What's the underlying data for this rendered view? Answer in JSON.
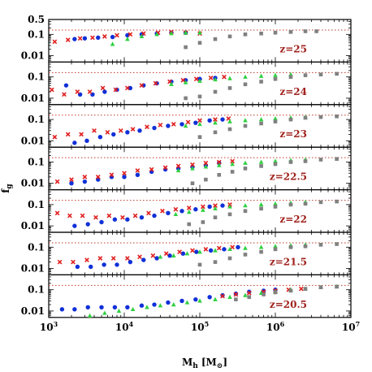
{
  "figure": {
    "ylabel_main": "f",
    "ylabel_sub": "g",
    "xlabel_main": "M",
    "xlabel_sub": "h",
    "xlabel_unit": "[M",
    "xlabel_unit_sub": "⊙",
    "xlabel_unit_end": "]"
  },
  "chart_data": {
    "type": "scatter",
    "x_scale": "log",
    "y_scale": "log",
    "xlim": [
      1000,
      10000000
    ],
    "ylim": [
      0.005,
      0.5
    ],
    "x_ticks": [
      {
        "base": "10",
        "exp": "3"
      },
      {
        "base": "10",
        "exp": "4"
      },
      {
        "base": "10",
        "exp": "5"
      },
      {
        "base": "10",
        "exp": "6"
      },
      {
        "base": "10",
        "exp": "7"
      }
    ],
    "y_tick_labels": [
      "0.5",
      "0.1",
      "0.01"
    ],
    "reference_line": {
      "y": 0.16,
      "style": "dotted",
      "color": "#c0392b"
    },
    "series_colors": {
      "blue": "#1030d8",
      "red": "#e02020",
      "green": "#30d040",
      "gray": "#808080"
    },
    "panels": [
      {
        "label": "z=25",
        "series": [
          {
            "marker": "circle",
            "color": "#1030d8",
            "x": [
              2200,
              3000,
              4500,
              7000,
              11000,
              17000,
              27000,
              42000,
              65000
            ],
            "y": [
              0.06,
              0.065,
              0.07,
              0.075,
              0.09,
              0.1,
              0.11,
              0.12,
              0.12
            ]
          },
          {
            "marker": "x",
            "color": "#e02020",
            "x": [
              1200,
              1800,
              2600,
              3800,
              5500,
              8000,
              12000,
              18000,
              28000,
              42000,
              65000,
              100000
            ],
            "y": [
              0.045,
              0.055,
              0.065,
              0.07,
              0.08,
              0.09,
              0.1,
              0.11,
              0.12,
              0.13,
              0.12,
              0.11
            ]
          },
          {
            "marker": "triangle",
            "color": "#30d040",
            "x": [
              7000,
              11000,
              17000,
              27000,
              42000,
              65000,
              100000
            ],
            "y": [
              0.035,
              0.06,
              0.08,
              0.1,
              0.11,
              0.12,
              0.12
            ]
          },
          {
            "marker": "square",
            "color": "#808080",
            "x": [
              65000,
              100000,
              160000,
              250000,
              400000,
              650000,
              1000000,
              1600000,
              2500000,
              3500000
            ],
            "y": [
              0.025,
              0.04,
              0.06,
              0.08,
              0.1,
              0.11,
              0.12,
              0.13,
              0.14,
              0.14
            ]
          }
        ]
      },
      {
        "label": "z=24",
        "series": [
          {
            "marker": "circle",
            "color": "#1030d8",
            "x": [
              1700,
              2600,
              3800,
              5500,
              8000,
              12000,
              18000,
              27000,
              42000,
              65000,
              100000,
              160000
            ],
            "y": [
              0.04,
              0.015,
              0.015,
              0.02,
              0.025,
              0.03,
              0.04,
              0.05,
              0.06,
              0.07,
              0.08,
              0.09
            ]
          },
          {
            "marker": "x",
            "color": "#e02020",
            "x": [
              1100,
              1600,
              2400,
              3500,
              5200,
              7700,
              11000,
              17000,
              26000,
              40000,
              60000,
              90000,
              140000,
              210000
            ],
            "y": [
              0.025,
              0.015,
              0.02,
              0.02,
              0.03,
              0.025,
              0.03,
              0.04,
              0.05,
              0.06,
              0.07,
              0.08,
              0.09,
              0.1
            ]
          },
          {
            "marker": "triangle",
            "color": "#30d040",
            "x": [
              42000,
              65000,
              100000,
              160000,
              250000,
              400000,
              650000,
              1000000,
              1600000
            ],
            "y": [
              0.045,
              0.055,
              0.065,
              0.075,
              0.085,
              0.1,
              0.11,
              0.12,
              0.13
            ]
          },
          {
            "marker": "square",
            "color": "#808080",
            "x": [
              65000,
              100000,
              160000,
              250000,
              400000,
              650000,
              1000000,
              1600000,
              2500000,
              4000000,
              6500000
            ],
            "y": [
              0.01,
              0.012,
              0.02,
              0.03,
              0.045,
              0.06,
              0.08,
              0.1,
              0.12,
              0.13,
              0.14
            ]
          }
        ]
      },
      {
        "label": "z=23",
        "series": [
          {
            "marker": "circle",
            "color": "#1030d8",
            "x": [
              2200,
              3200,
              4800,
              7200,
              11000,
              16000,
              25000,
              38000,
              58000,
              88000,
              135000,
              200000
            ],
            "y": [
              0.008,
              0.01,
              0.015,
              0.02,
              0.025,
              0.03,
              0.04,
              0.05,
              0.06,
              0.07,
              0.09,
              0.1
            ]
          },
          {
            "marker": "x",
            "color": "#e02020",
            "x": [
              1200,
              1800,
              2700,
              4000,
              6000,
              9000,
              13000,
              20000,
              30000,
              45000,
              70000,
              100000,
              160000,
              240000
            ],
            "y": [
              0.015,
              0.02,
              0.02,
              0.03,
              0.025,
              0.03,
              0.035,
              0.045,
              0.055,
              0.06,
              0.075,
              0.09,
              0.1,
              0.11
            ]
          },
          {
            "marker": "triangle",
            "color": "#30d040",
            "x": [
              65000,
              100000,
              160000,
              250000,
              400000,
              650000,
              1000000,
              1600000,
              2500000
            ],
            "y": [
              0.05,
              0.06,
              0.07,
              0.08,
              0.09,
              0.1,
              0.11,
              0.12,
              0.13
            ]
          },
          {
            "marker": "square",
            "color": "#808080",
            "x": [
              100000,
              160000,
              250000,
              400000,
              650000,
              1000000,
              1600000,
              2500000,
              4000000,
              6500000
            ],
            "y": [
              0.015,
              0.025,
              0.035,
              0.05,
              0.065,
              0.08,
              0.1,
              0.12,
              0.13,
              0.14
            ]
          }
        ]
      },
      {
        "label": "z=22.5",
        "series": [
          {
            "marker": "circle",
            "color": "#1030d8",
            "x": [
              2000,
              3000,
              4500,
              6800,
              10000,
              15000,
              23000,
              35000,
              52000,
              80000,
              120000,
              180000
            ],
            "y": [
              0.01,
              0.012,
              0.015,
              0.02,
              0.02,
              0.025,
              0.035,
              0.045,
              0.05,
              0.06,
              0.07,
              0.09
            ]
          },
          {
            "marker": "x",
            "color": "#e02020",
            "x": [
              1300,
              2000,
              3000,
              4500,
              6800,
              10000,
              15000,
              23000,
              35000,
              52000,
              80000,
              120000,
              180000,
              270000
            ],
            "y": [
              0.012,
              0.015,
              0.02,
              0.02,
              0.025,
              0.03,
              0.04,
              0.045,
              0.055,
              0.065,
              0.075,
              0.09,
              0.1,
              0.11
            ]
          },
          {
            "marker": "triangle",
            "color": "#30d040",
            "x": [
              52000,
              80000,
              120000,
              180000,
              270000,
              400000,
              650000,
              1000000,
              1600000,
              2500000
            ],
            "y": [
              0.04,
              0.05,
              0.06,
              0.07,
              0.08,
              0.09,
              0.1,
              0.11,
              0.12,
              0.13
            ]
          },
          {
            "marker": "square",
            "color": "#808080",
            "x": [
              80000,
              120000,
              180000,
              270000,
              400000,
              650000,
              1000000,
              1600000,
              2500000,
              4000000,
              6500000
            ],
            "y": [
              0.01,
              0.015,
              0.025,
              0.035,
              0.05,
              0.065,
              0.08,
              0.1,
              0.11,
              0.13,
              0.14
            ]
          }
        ]
      },
      {
        "label": "z=22",
        "series": [
          {
            "marker": "circle",
            "color": "#1030d8",
            "x": [
              2200,
              3300,
              5000,
              7500,
              11000,
              17000,
              25000,
              38000,
              58000,
              88000,
              135000,
              200000
            ],
            "y": [
              0.01,
              0.012,
              0.015,
              0.02,
              0.02,
              0.025,
              0.03,
              0.04,
              0.05,
              0.06,
              0.08,
              0.09
            ]
          },
          {
            "marker": "x",
            "color": "#e02020",
            "x": [
              1300,
              1900,
              2800,
              4200,
              6300,
              9500,
              14000,
              21000,
              32000,
              48000,
              72000,
              110000,
              160000,
              250000
            ],
            "y": [
              0.04,
              0.03,
              0.03,
              0.025,
              0.03,
              0.025,
              0.03,
              0.04,
              0.05,
              0.06,
              0.07,
              0.08,
              0.09,
              0.1
            ]
          },
          {
            "marker": "triangle",
            "color": "#30d040",
            "x": [
              48000,
              72000,
              110000,
              160000,
              250000,
              400000,
              650000,
              1000000,
              1600000,
              2500000
            ],
            "y": [
              0.035,
              0.045,
              0.055,
              0.065,
              0.08,
              0.09,
              0.1,
              0.11,
              0.12,
              0.13
            ]
          },
          {
            "marker": "square",
            "color": "#808080",
            "x": [
              72000,
              110000,
              160000,
              250000,
              400000,
              650000,
              1000000,
              1600000,
              2500000,
              4000000,
              6500000
            ],
            "y": [
              0.012,
              0.015,
              0.025,
              0.035,
              0.05,
              0.065,
              0.08,
              0.1,
              0.11,
              0.13,
              0.14
            ]
          }
        ]
      },
      {
        "label": "z=21.5",
        "series": [
          {
            "marker": "circle",
            "color": "#1030d8",
            "x": [
              2400,
              3600,
              5400,
              8000,
              12000,
              18000,
              27000,
              40000,
              60000,
              90000,
              140000,
              210000,
              320000
            ],
            "y": [
              0.012,
              0.012,
              0.015,
              0.015,
              0.02,
              0.025,
              0.03,
              0.04,
              0.05,
              0.06,
              0.07,
              0.08,
              0.1
            ]
          },
          {
            "marker": "x",
            "color": "#e02020",
            "x": [
              1400,
              2100,
              3200,
              4800,
              7200,
              11000,
              16000,
              24000,
              36000,
              54000,
              80000,
              120000,
              180000,
              270000
            ],
            "y": [
              0.02,
              0.02,
              0.025,
              0.03,
              0.03,
              0.03,
              0.035,
              0.04,
              0.05,
              0.06,
              0.07,
              0.08,
              0.09,
              0.1
            ]
          },
          {
            "marker": "triangle",
            "color": "#30d040",
            "x": [
              30000,
              45000,
              68000,
              100000,
              160000,
              250000,
              400000,
              650000,
              1000000,
              1600000,
              2500000
            ],
            "y": [
              0.035,
              0.04,
              0.05,
              0.06,
              0.07,
              0.08,
              0.09,
              0.1,
              0.11,
              0.12,
              0.13
            ]
          },
          {
            "marker": "square",
            "color": "#808080",
            "x": [
              100000,
              160000,
              250000,
              400000,
              650000,
              1000000,
              1600000,
              2500000,
              4000000,
              6500000
            ],
            "y": [
              0.015,
              0.02,
              0.03,
              0.045,
              0.06,
              0.08,
              0.1,
              0.11,
              0.13,
              0.14
            ]
          }
        ]
      },
      {
        "label": "z=20.5",
        "series": [
          {
            "marker": "circle",
            "color": "#1030d8",
            "x": [
              1500,
              2200,
              3300,
              5000,
              7500,
              11000,
              17000,
              25000,
              38000,
              58000,
              88000,
              135000,
              200000,
              300000,
              450000,
              700000,
              1000000
            ],
            "y": [
              0.012,
              0.012,
              0.015,
              0.015,
              0.015,
              0.015,
              0.018,
              0.02,
              0.025,
              0.03,
              0.035,
              0.045,
              0.055,
              0.065,
              0.08,
              0.09,
              0.1
            ]
          },
          {
            "marker": "x",
            "color": "#e02020",
            "x": [
              200000,
              300000,
              450000,
              700000,
              1000000,
              1500000,
              2200000
            ],
            "y": [
              0.05,
              0.06,
              0.07,
              0.08,
              0.09,
              0.1,
              0.11
            ]
          },
          {
            "marker": "triangle",
            "color": "#30d040",
            "x": [
              3500,
              5500,
              8500,
              13000,
              20000,
              30000,
              45000,
              68000,
              100000,
              160000,
              250000,
              400000,
              650000,
              1000000,
              1600000,
              2500000,
              4000000,
              6500000
            ],
            "y": [
              0.006,
              0.008,
              0.01,
              0.012,
              0.015,
              0.018,
              0.02,
              0.025,
              0.03,
              0.035,
              0.045,
              0.055,
              0.07,
              0.08,
              0.1,
              0.11,
              0.13,
              0.14
            ]
          },
          {
            "marker": "square",
            "color": "#808080",
            "x": [
              300000,
              450000,
              700000,
              1000000,
              1600000,
              2500000,
              4000000,
              6500000
            ],
            "y": [
              0.035,
              0.045,
              0.06,
              0.075,
              0.09,
              0.11,
              0.13,
              0.14
            ]
          }
        ]
      }
    ]
  }
}
